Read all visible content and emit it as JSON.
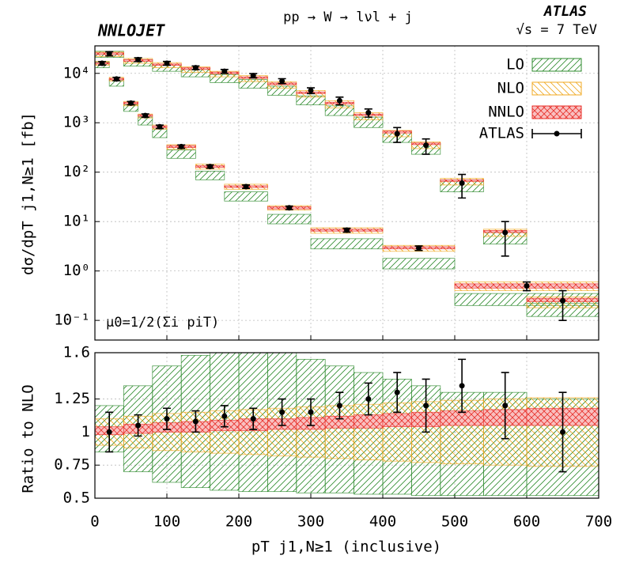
{
  "chart_data": [
    {
      "type": "step",
      "title": "pp → W → lνl + j",
      "brand": "NNLOJET",
      "experiment": "ATLAS",
      "energy": "√s = 7 TeV",
      "ylabel": "dσ/dpT j1,N≥1 [fb]",
      "annotation": "μ0=1/2(Σi piT)",
      "ylog": true,
      "grid": true,
      "legend": "top-right",
      "xlim": [
        0,
        700
      ],
      "xticks": [
        0,
        100,
        200,
        300,
        400,
        500,
        600,
        700
      ],
      "ylim": [
        0.04,
        36000
      ],
      "yticks": [
        {
          "value": 0.1,
          "label": "10⁻¹"
        },
        {
          "value": 1,
          "label": "10⁰"
        },
        {
          "value": 10,
          "label": "10¹"
        },
        {
          "value": 100,
          "label": "10²"
        },
        {
          "value": 1000,
          "label": "10³"
        },
        {
          "value": 10000,
          "label": "10⁴"
        }
      ],
      "sets": [
        {
          "bins": [
            0,
            40,
            80,
            120,
            160,
            200,
            240,
            280,
            320,
            360,
            400,
            440,
            480,
            540,
            600,
            700
          ]
        },
        {
          "bins": [
            0,
            20,
            40,
            60,
            80,
            100,
            140,
            180,
            240,
            300,
            400,
            500,
            700
          ]
        }
      ],
      "series": [
        {
          "name": "LO",
          "color": "#2e8b2e",
          "pattern": "forward",
          "low": [
            [
              21000,
              14000,
              11000,
              8500,
              6500,
              5000,
              3600,
              2300,
              1400,
              800,
              400,
              230,
              40,
              3.5,
              0.12
            ],
            [
              13000,
              5500,
              1700,
              900,
              500,
              190,
              70,
              26,
              9,
              2.8,
              1.1,
              0.2
            ]
          ],
          "high": [
            [
              28000,
              19000,
              15000,
              12000,
              9500,
              7500,
              5500,
              3500,
              2200,
              1300,
              650,
              380,
              70,
              6,
              0.22
            ],
            [
              17000,
              7500,
              2300,
              1300,
              750,
              280,
              105,
              40,
              14,
              4.5,
              1.8,
              0.35
            ]
          ]
        },
        {
          "name": "NLO",
          "color": "#f0a820",
          "pattern": "backward",
          "low": [
            [
              22000,
              16000,
              13000,
              10500,
              8500,
              6800,
              5000,
              3300,
              2000,
              1150,
              520,
              300,
              55,
              5,
              0.18
            ],
            [
              14500,
              7000,
              2200,
              1250,
              740,
              290,
              115,
              45,
              17,
              5.8,
              2.5,
              0.4
            ]
          ],
          "high": [
            [
              27000,
              20000,
              16500,
              13500,
              11000,
              9000,
              6800,
              4500,
              2800,
              1600,
              700,
              410,
              75,
              7,
              0.3
            ],
            [
              17500,
              8300,
              2700,
              1500,
              900,
              360,
              145,
              57,
              21,
              7.5,
              3.3,
              0.6
            ]
          ]
        },
        {
          "name": "NNLO",
          "color": "#e8302a",
          "fill": "#f9c0c0",
          "pattern": "cross",
          "low": [
            [
              24000,
              17500,
              14500,
              12000,
              9800,
              7900,
              5900,
              3900,
              2400,
              1400,
              620,
              360,
              65,
              6,
              0.24
            ],
            [
              15500,
              7400,
              2400,
              1350,
              800,
              315,
              125,
              49,
              18,
              6.4,
              2.8,
              0.45
            ]
          ],
          "high": [
            [
              26000,
              19000,
              15500,
              13000,
              10600,
              8500,
              6400,
              4200,
              2600,
              1500,
              680,
              390,
              70,
              6.6,
              0.28
            ],
            [
              16500,
              7900,
              2600,
              1450,
              860,
              345,
              135,
              53,
              20,
              7,
              3.1,
              0.55
            ]
          ]
        }
      ],
      "measured": {
        "name": "ATLAS",
        "color": "#000000",
        "values": [
          [
            25000,
            19000,
            16000,
            13000,
            11000,
            9000,
            7000,
            4500,
            2800,
            1600,
            600,
            350,
            60,
            6,
            0.25
          ],
          [
            16000,
            7700,
            2500,
            1400,
            830,
            330,
            130,
            51,
            19,
            6.7,
            2.9,
            0.5
          ]
        ],
        "errors": [
          [
            2500,
            1700,
            1400,
            1100,
            1000,
            900,
            800,
            600,
            500,
            300,
            200,
            120,
            30,
            4,
            0.15
          ],
          [
            1300,
            600,
            200,
            110,
            66,
            26,
            10,
            4,
            1.5,
            0.6,
            0.3,
            0.1
          ]
        ]
      }
    },
    {
      "type": "step",
      "ylabel": "Ratio to NLO",
      "xlabel": "pT j1,N≥1 (inclusive)",
      "ylog": false,
      "grid": true,
      "xlim": [
        0,
        700
      ],
      "xticks": [
        0,
        100,
        200,
        300,
        400,
        500,
        600,
        700
      ],
      "ylim": [
        0.5,
        1.6
      ],
      "yticks": [
        0.5,
        0.75,
        1,
        1.25,
        1.6
      ],
      "sets": [
        {
          "bins": [
            0,
            40,
            80,
            120,
            160,
            200,
            240,
            280,
            320,
            360,
            400,
            440,
            480,
            540,
            600,
            700
          ]
        }
      ],
      "series": [
        {
          "name": "LO",
          "color": "#2e8b2e",
          "pattern": "forward",
          "low": [
            [
              0.85,
              0.7,
              0.62,
              0.58,
              0.56,
              0.55,
              0.55,
              0.54,
              0.54,
              0.53,
              0.53,
              0.52,
              0.52,
              0.52,
              0.52
            ]
          ],
          "high": [
            [
              1.2,
              1.35,
              1.5,
              1.58,
              1.6,
              1.6,
              1.6,
              1.55,
              1.5,
              1.45,
              1.4,
              1.35,
              1.3,
              1.3,
              1.25
            ]
          ]
        },
        {
          "name": "NLO",
          "color": "#f0a820",
          "pattern": "backward",
          "low": [
            [
              0.9,
              0.88,
              0.86,
              0.85,
              0.84,
              0.83,
              0.82,
              0.81,
              0.8,
              0.79,
              0.78,
              0.77,
              0.76,
              0.75,
              0.74
            ]
          ],
          "high": [
            [
              1.1,
              1.12,
              1.14,
              1.15,
              1.16,
              1.17,
              1.18,
              1.19,
              1.2,
              1.21,
              1.22,
              1.23,
              1.24,
              1.25,
              1.26
            ]
          ]
        },
        {
          "name": "NNLO",
          "color": "#e8302a",
          "fill": "#f9c0c0",
          "pattern": "cross",
          "low": [
            [
              0.98,
              0.99,
              1.0,
              1.0,
              1.01,
              1.01,
              1.02,
              1.02,
              1.03,
              1.03,
              1.04,
              1.04,
              1.05,
              1.05,
              1.05
            ]
          ],
          "high": [
            [
              1.04,
              1.06,
              1.07,
              1.08,
              1.09,
              1.1,
              1.1,
              1.11,
              1.12,
              1.13,
              1.14,
              1.15,
              1.16,
              1.17,
              1.18
            ]
          ]
        }
      ],
      "measured": {
        "name": "ATLAS",
        "color": "#000000",
        "values": [
          [
            1.0,
            1.05,
            1.1,
            1.08,
            1.12,
            1.1,
            1.15,
            1.15,
            1.2,
            1.25,
            1.3,
            1.2,
            1.35,
            1.2,
            1.0
          ]
        ],
        "errors": [
          [
            0.15,
            0.08,
            0.08,
            0.08,
            0.08,
            0.08,
            0.1,
            0.1,
            0.1,
            0.12,
            0.15,
            0.2,
            0.2,
            0.25,
            0.3
          ]
        ]
      }
    }
  ]
}
